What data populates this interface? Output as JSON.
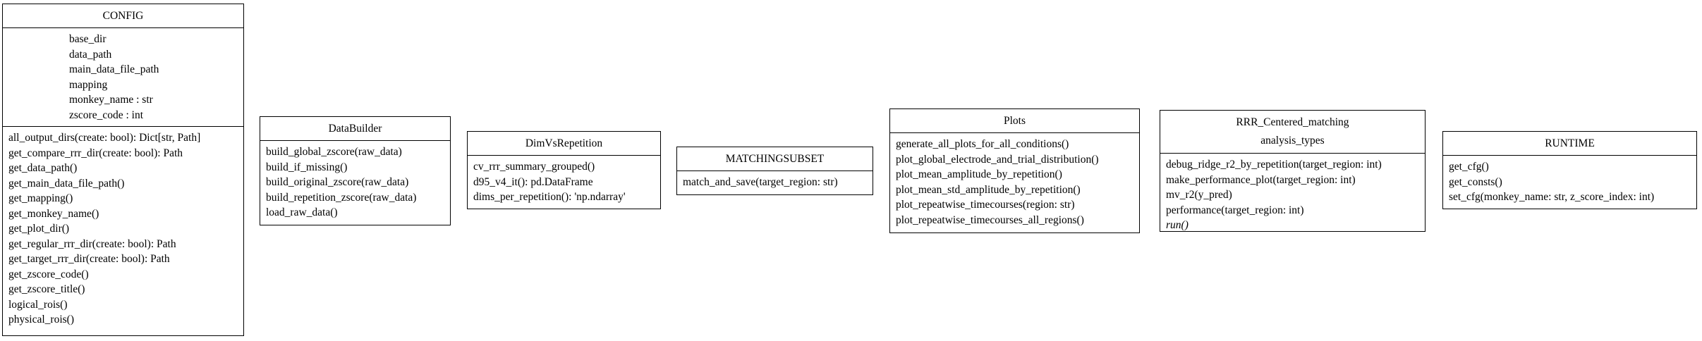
{
  "classes": [
    {
      "name": "CONFIG",
      "attributes": [
        "base_dir",
        "data_path",
        "main_data_file_path",
        "mapping",
        "monkey_name : str",
        "zscore_code : int"
      ],
      "methods": [
        "all_output_dirs(create: bool): Dict[str, Path]",
        "get_compare_rrr_dir(create: bool): Path",
        "get_data_path()",
        "get_main_data_file_path()",
        "get_mapping()",
        "get_monkey_name()",
        "get_plot_dir()",
        "get_regular_rrr_dir(create: bool): Path",
        "get_target_rrr_dir(create: bool): Path",
        "get_zscore_code()",
        "get_zscore_title()",
        "logical_rois()",
        "physical_rois()"
      ]
    },
    {
      "name": "DataBuilder",
      "attributes": [],
      "methods": [
        "build_global_zscore(raw_data)",
        "build_if_missing()",
        "build_original_zscore(raw_data)",
        "build_repetition_zscore(raw_data)",
        "load_raw_data()"
      ]
    },
    {
      "name": "DimVsRepetition",
      "attributes": [],
      "methods": [
        "cv_rrr_summary_grouped()",
        "d95_v4_it(): pd.DataFrame",
        "dims_per_repetition(): 'np.ndarray'"
      ]
    },
    {
      "name": "MATCHINGSUBSET",
      "attributes": [],
      "methods": [
        "match_and_save(target_region: str)"
      ]
    },
    {
      "name": "Plots",
      "attributes": [],
      "methods": [
        "generate_all_plots_for_all_conditions()",
        "plot_global_electrode_and_trial_distribution()",
        "plot_mean_amplitude_by_repetition()",
        "plot_mean_std_amplitude_by_repetition()",
        "plot_repeatwise_timecourses(region: str)",
        "plot_repeatwise_timecourses_all_regions()"
      ]
    },
    {
      "name": "RRR_Centered_matching",
      "stereotype": "analysis_types",
      "methods": [
        "debug_ridge_r2_by_repetition(target_region: int)",
        "make_performance_plot(target_region: int)",
        "mv_r2(y_pred)",
        "performance(target_region: int)",
        "run()"
      ]
    },
    {
      "name": "RUNTIME",
      "attributes": [],
      "methods": [
        "get_cfg()",
        "get_consts()",
        "set_cfg(monkey_name: str, z_score_index: int)"
      ]
    }
  ]
}
